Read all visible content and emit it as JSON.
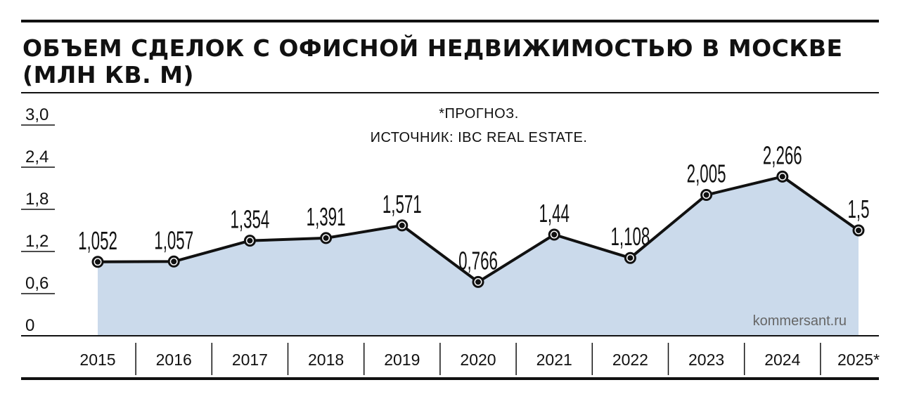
{
  "title_lines": [
    "ОБЪЕМ СДЕЛОК С ОФИСНОЙ НЕДВИЖИМОСТЬЮ В МОСКВЕ",
    "(МЛН КВ. М)"
  ],
  "notes": [
    "*ПРОГНОЗ.",
    "ИСТОЧНИК: IBC REAL ESTATE."
  ],
  "credit": "kommersant.ru",
  "colors": {
    "area": "#cbdaeb",
    "line": "#111111",
    "marker": "#111111"
  },
  "chart_data": {
    "type": "area",
    "title": "ОБЪЕМ СДЕЛОК С ОФИСНОЙ НЕДВИЖИМОСТЬЮ В МОСКВЕ (МЛН КВ. М)",
    "xlabel": "",
    "ylabel": "",
    "ylim": [
      0,
      3.0
    ],
    "yticks": [
      "0",
      "0,6",
      "1,2",
      "1,8",
      "2,4",
      "3,0"
    ],
    "categories": [
      "2015",
      "2016",
      "2017",
      "2018",
      "2019",
      "2020",
      "2021",
      "2022",
      "2023",
      "2024",
      "2025*"
    ],
    "values": [
      1.052,
      1.057,
      1.354,
      1.391,
      1.571,
      0.766,
      1.44,
      1.108,
      2.005,
      2.266,
      1.5
    ],
    "value_labels": [
      "1,052",
      "1,057",
      "1,354",
      "1,391",
      "1,571",
      "0,766",
      "1,44",
      "1,108",
      "2,005",
      "2,266",
      "1,5"
    ],
    "grid": false,
    "legend": "none"
  }
}
